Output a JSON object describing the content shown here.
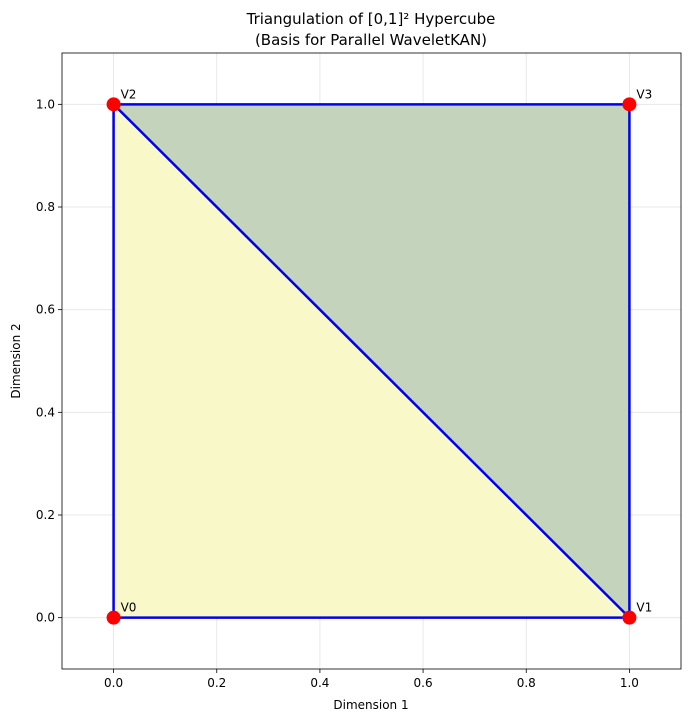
{
  "chart_data": {
    "type": "scatter",
    "title": [
      "Triangulation of [0,1]² Hypercube",
      "(Basis for Parallel WaveletKAN)"
    ],
    "xlabel": "Dimension 1",
    "ylabel": "Dimension 2",
    "xlim": [
      -0.1,
      1.1
    ],
    "ylim": [
      -0.1,
      1.1
    ],
    "xticks": [
      0.0,
      0.2,
      0.4,
      0.6,
      0.8,
      1.0
    ],
    "yticks": [
      0.0,
      0.2,
      0.4,
      0.6,
      0.8,
      1.0
    ],
    "xtick_labels": [
      "0.0",
      "0.2",
      "0.4",
      "0.6",
      "0.8",
      "1.0"
    ],
    "ytick_labels": [
      "0.0",
      "0.2",
      "0.4",
      "0.6",
      "0.8",
      "1.0"
    ],
    "grid": true,
    "vertices": [
      {
        "label": "V0",
        "x": 0,
        "y": 0
      },
      {
        "label": "V1",
        "x": 1,
        "y": 0
      },
      {
        "label": "V2",
        "x": 0,
        "y": 1
      },
      {
        "label": "V3",
        "x": 1,
        "y": 1
      }
    ],
    "triangles": [
      {
        "vertices": [
          0,
          1,
          2
        ],
        "fill": "#f8f8c8"
      },
      {
        "vertices": [
          1,
          3,
          2
        ],
        "fill": "#c4d4bc"
      }
    ],
    "edges": [
      [
        0,
        1
      ],
      [
        1,
        3
      ],
      [
        3,
        2
      ],
      [
        2,
        0
      ],
      [
        1,
        2
      ]
    ],
    "edge_color": "#0000ee",
    "vertex_color": "#ff0000"
  }
}
